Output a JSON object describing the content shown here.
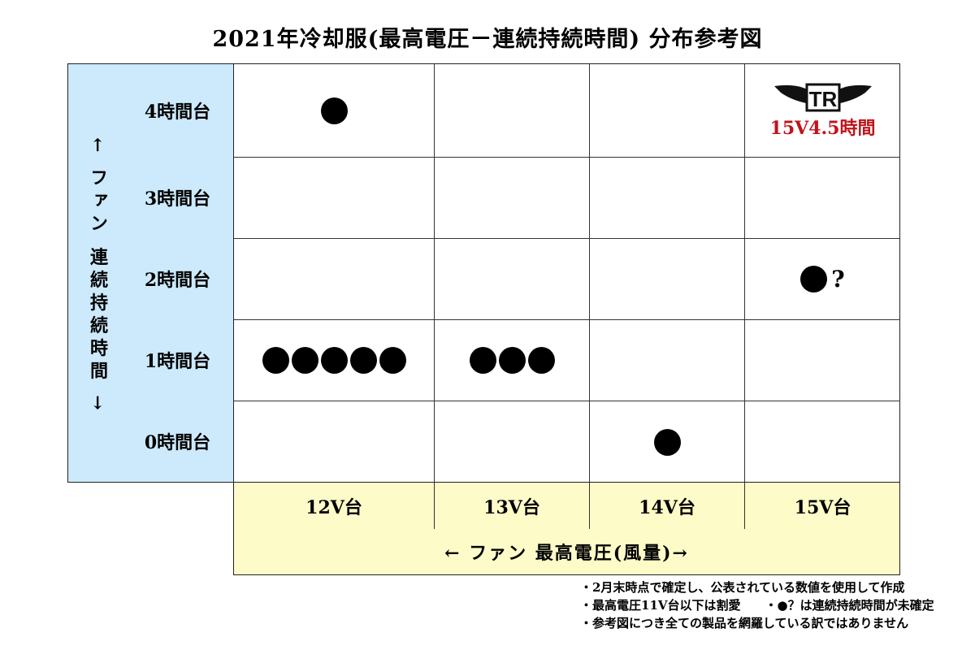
{
  "title": "2021年冷却服(最高電圧－連続持続時間) 分布参考図",
  "y_axis_label": "← ファン 連続持続時間 →",
  "x_axis_label": "← ファン 最高電圧(風量)→",
  "rows": [
    "4時間台",
    "3時間台",
    "2時間台",
    "1時間台",
    "0時間台"
  ],
  "columns": [
    "12V台",
    "13V台",
    "14V台",
    "15V台"
  ],
  "cells": [
    [
      {
        "dots": 1
      },
      {
        "dots": 0
      },
      {
        "dots": 0
      },
      {
        "logo": "TR",
        "label": "15V4.5時間"
      }
    ],
    [
      {
        "dots": 0
      },
      {
        "dots": 0
      },
      {
        "dots": 0
      },
      {
        "dots": 0
      }
    ],
    [
      {
        "dots": 0
      },
      {
        "dots": 0
      },
      {
        "dots": 0
      },
      {
        "dots": 1,
        "suffix": "?"
      }
    ],
    [
      {
        "dots": 5
      },
      {
        "dots": 3
      },
      {
        "dots": 0
      },
      {
        "dots": 0
      }
    ],
    [
      {
        "dots": 0
      },
      {
        "dots": 0
      },
      {
        "dots": 1
      },
      {
        "dots": 0
      }
    ]
  ],
  "notes": [
    "・2月末時点で確定し、公表されている数値を使用して作成",
    "・最高電圧11V台以下は割愛　　・●？は連続持続時間が未確定",
    "・参考図につき全ての製品を網羅している訳ではありません"
  ],
  "colors": {
    "left_panel": "#cdeafc",
    "bottom_panel": "#fdfbc8",
    "highlight": "#c0131a"
  }
}
